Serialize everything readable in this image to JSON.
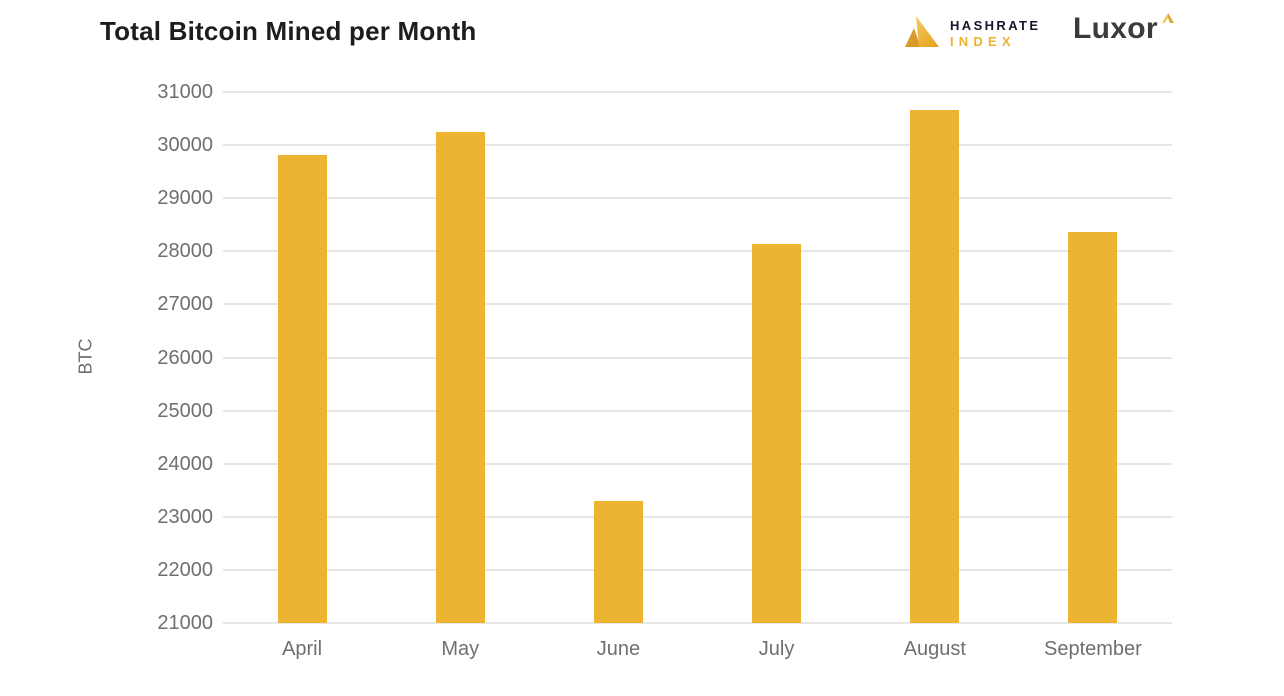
{
  "header": {
    "title": "Total Bitcoin Mined per Month"
  },
  "logos": {
    "hashrate_index": {
      "top": "HASHRATE",
      "bottom": "INDEX",
      "mark_color_light": "#F3C45C",
      "mark_color_dark": "#D9992B",
      "top_text_color": "#17172B",
      "bottom_text_color": "#EFB230"
    },
    "luxor": {
      "text": "Luxor",
      "text_color": "#3B3B3B",
      "caret_color_light": "#F3C45C",
      "caret_color_dark": "#E0A52E"
    }
  },
  "chart_data": {
    "type": "bar",
    "title": "Total Bitcoin Mined per Month",
    "categories": [
      "April",
      "May",
      "June",
      "July",
      "August",
      "September"
    ],
    "values": [
      29820,
      30250,
      23290,
      28130,
      30670,
      28360
    ],
    "xlabel": "",
    "ylabel": "BTC",
    "ylim": [
      21000,
      31000
    ],
    "ytick_step": 1000,
    "yticks": [
      21000,
      22000,
      23000,
      24000,
      25000,
      26000,
      27000,
      28000,
      29000,
      30000,
      31000
    ],
    "grid": true,
    "legend": false,
    "bar_color": "#EDB431",
    "gridline_color": "#E6E6E6",
    "tick_label_color": "#6F6F6F",
    "background_color": "#FFFFFF"
  }
}
